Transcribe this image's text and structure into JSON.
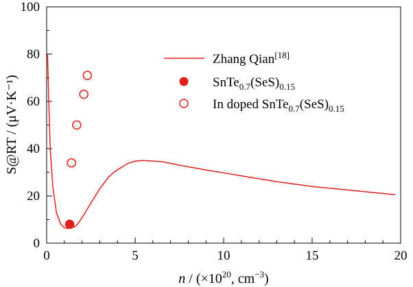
{
  "chart_data": {
    "type": "scatter",
    "xlabel": {
      "italic": "n",
      "pre": " / (×10",
      "sup": "20",
      "post": ", cm",
      "sup2": "−3",
      "end": ")"
    },
    "ylabel": "S@RT / (μV·K⁻¹)",
    "xlim": [
      0,
      20
    ],
    "ylim": [
      0,
      100
    ],
    "xticks": [
      0,
      5,
      10,
      15,
      20
    ],
    "yticks": [
      0,
      20,
      40,
      60,
      80,
      100
    ],
    "legend_position": "top-right",
    "colors": {
      "series": "#e0201b",
      "axis": "#000000"
    },
    "series": [
      {
        "name": "Zhang Qian",
        "name_sup": "[18]",
        "kind": "line",
        "x": [
          0.05,
          0.12,
          0.2,
          0.35,
          0.55,
          0.8,
          1.0,
          1.2,
          1.4,
          1.6,
          1.8,
          2.1,
          2.5,
          3.0,
          3.5,
          3.8,
          4.2,
          4.6,
          5.0,
          5.4,
          5.8,
          6.5,
          7.5,
          9,
          11,
          13,
          15,
          17,
          19.7
        ],
        "y": [
          80,
          60,
          40,
          24,
          13,
          8,
          6.5,
          6.2,
          6.5,
          7,
          8.5,
          12,
          17,
          23,
          28,
          30,
          32,
          33.8,
          34.7,
          35,
          34.8,
          34.5,
          33,
          31,
          28.5,
          26,
          24,
          22.5,
          20.5
        ]
      },
      {
        "name": "SnTe",
        "name_parts": [
          "SnTe",
          "0.7",
          "(SeS)",
          "0.15"
        ],
        "kind": "filled",
        "x": [
          1.3
        ],
        "y": [
          8
        ]
      },
      {
        "name": "In doped SnTe",
        "name_parts": [
          "In doped SnTe",
          "0.7",
          "(SeS)",
          "0.15"
        ],
        "kind": "open",
        "x": [
          1.4,
          1.7,
          2.1,
          2.3
        ],
        "y": [
          34,
          50,
          63,
          71
        ]
      }
    ]
  }
}
